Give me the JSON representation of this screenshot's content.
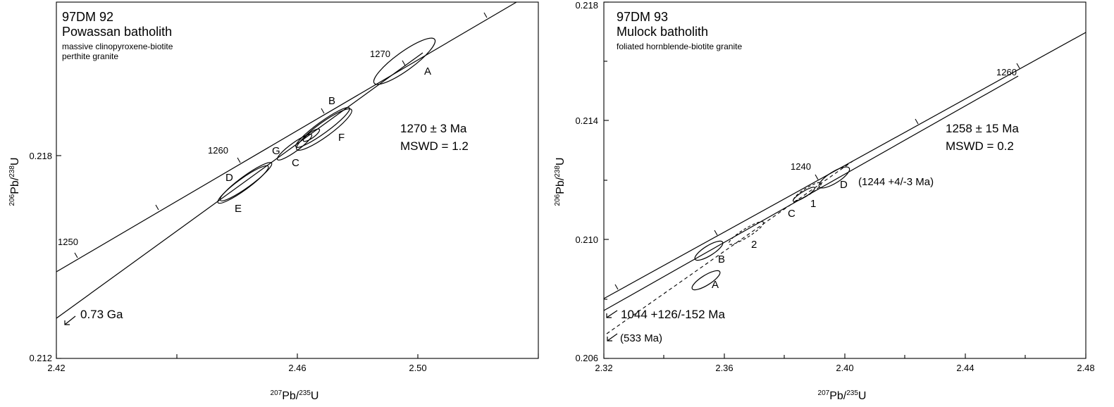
{
  "chart_data": [
    {
      "type": "scatter",
      "panel": "left",
      "sample_id": "97DM 92",
      "title": "Powassan batholith",
      "subtitle_lines": [
        "massive clinopyroxene-biotite",
        "perthite granite"
      ],
      "xlabel_parts": [
        "207",
        "Pb/",
        "235",
        "U"
      ],
      "ylabel_parts": [
        "206",
        "Pb/",
        "238",
        "U"
      ],
      "xlim": [
        2.42,
        2.52
      ],
      "ylim": [
        0.212,
        0.224
      ],
      "x_tick_labels": [
        "2.42",
        "2.46",
        "2.50"
      ],
      "y_tick_labels": [
        "0.212",
        "0.218"
      ],
      "concordia_age_labels": [
        "1250",
        "1260",
        "1270"
      ],
      "result_lines": [
        "1270 ± 3 Ma",
        "MSWD = 1.2"
      ],
      "lower_intercept_label": "0.73 Ga",
      "ellipses": [
        {
          "label": "A",
          "x": 2.493,
          "y": 0.2215
        },
        {
          "label": "B",
          "x": 2.473,
          "y": 0.2191
        },
        {
          "label": "F",
          "x": 2.476,
          "y": 0.2188
        },
        {
          "label": "G",
          "x": 2.471,
          "y": 0.2187
        },
        {
          "label": "C",
          "x": 2.469,
          "y": 0.2184
        },
        {
          "label": "D",
          "x": 2.46,
          "y": 0.2177
        },
        {
          "label": "E",
          "x": 2.46,
          "y": 0.2175
        }
      ]
    },
    {
      "type": "scatter",
      "panel": "right",
      "sample_id": "97DM 93",
      "title": "Mulock batholith",
      "subtitle_lines": [
        "foliated hornblende-biotite granite"
      ],
      "xlabel_parts": [
        "207",
        "Pb/",
        "235",
        "U"
      ],
      "ylabel_parts": [
        "206",
        "Pb/",
        "238",
        "U"
      ],
      "xlim": [
        2.32,
        2.48
      ],
      "ylim": [
        0.206,
        0.218
      ],
      "x_tick_labels": [
        "2.32",
        "2.36",
        "2.40",
        "2.44",
        "2.48"
      ],
      "y_tick_labels": [
        "0.206",
        "0.210",
        "0.214",
        "0.218"
      ],
      "concordia_age_labels": [
        "1240",
        "1260"
      ],
      "result_lines": [
        "1258 ± 15 Ma",
        "MSWD = 0.2"
      ],
      "intercept_labels": [
        "(1244 +4/-3 Ma)",
        "1044 +126/-152 Ma",
        "(533 Ma)"
      ],
      "ellipses": [
        {
          "label": "D",
          "x": 2.396,
          "y": 0.2121
        },
        {
          "label": "1",
          "x": 2.388,
          "y": 0.2118
        },
        {
          "label": "C",
          "x": 2.386,
          "y": 0.2117
        },
        {
          "label": "2",
          "x": 2.367,
          "y": 0.2103
        },
        {
          "label": "B",
          "x": 2.356,
          "y": 0.2095
        },
        {
          "label": "A",
          "x": 2.355,
          "y": 0.2086
        }
      ]
    }
  ]
}
